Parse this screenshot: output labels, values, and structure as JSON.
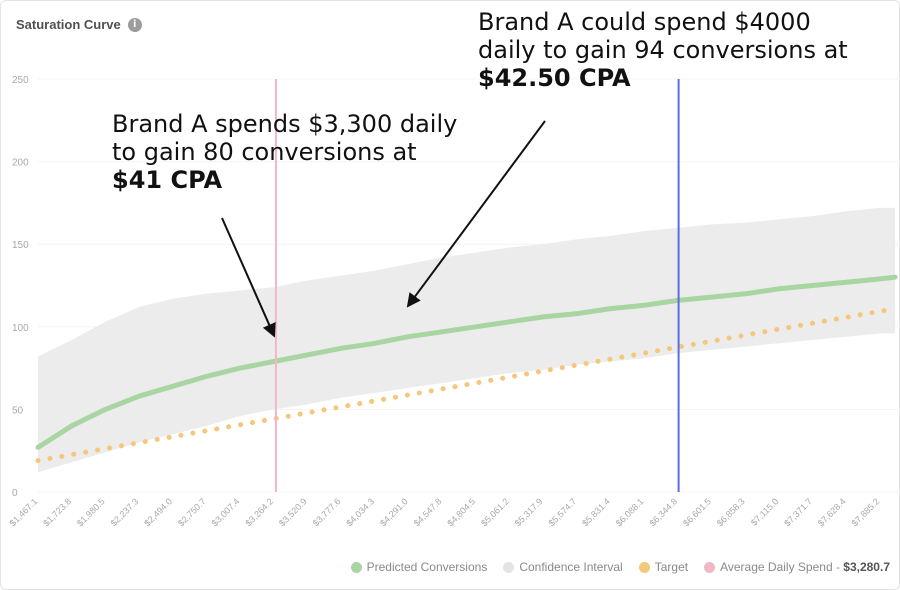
{
  "chart_data": {
    "type": "line",
    "title": "Saturation Curve",
    "info_icon": "info-icon",
    "yticks": [
      0,
      50,
      100,
      150,
      200,
      250
    ],
    "ylim": [
      0,
      250
    ],
    "xlim": [
      1467.1,
      7885.2
    ],
    "x_tick_values": [
      1467.1,
      1723.8,
      1980.5,
      2237.3,
      2494.0,
      2750.7,
      3007.4,
      3264.2,
      3520.9,
      3777.6,
      4034.3,
      4291.0,
      4547.8,
      4804.5,
      5061.2,
      5317.9,
      5574.7,
      5831.4,
      6088.1,
      6344.8,
      6601.5,
      6858.3,
      7115.0,
      7371.7,
      7628.4,
      7885.2
    ],
    "x_tick_labels": [
      "$1,467.1",
      "$1,723.8",
      "$1,980.5",
      "$2,237.3",
      "$2,494.0",
      "$2,750.7",
      "$3,007.4",
      "$3,264.2",
      "$3,520.9",
      "$3,777.6",
      "$4,034.3",
      "$4,291.0",
      "$4,547.8",
      "$4,804.5",
      "$5,061.2",
      "$5,317.9",
      "$5,574.7",
      "$5,831.4",
      "$6,088.1",
      "$6,344.8",
      "$6,601.5",
      "$6,858.3",
      "$7,115.0",
      "$7,371.7",
      "$7,628.4",
      "$7,885.2"
    ],
    "series": [
      {
        "name": "Predicted Conversions",
        "color": "#a8d5a2",
        "style": "solid",
        "x": [
          1467.1,
          1723.8,
          1980.5,
          2237.3,
          2494.0,
          2750.7,
          3007.4,
          3264.2,
          3520.9,
          3777.6,
          4034.3,
          4291.0,
          4547.8,
          4804.5,
          5061.2,
          5317.9,
          5574.7,
          5831.4,
          6088.1,
          6344.8,
          6601.5,
          6858.3,
          7115.0,
          7371.7,
          7628.4,
          7885.2,
          8000
        ],
        "y": [
          27,
          40,
          50,
          58,
          64,
          70,
          75,
          79,
          83,
          87,
          90,
          94,
          97,
          100,
          103,
          106,
          108,
          111,
          113,
          116,
          118,
          120,
          123,
          125,
          127,
          129,
          130
        ]
      },
      {
        "name": "Target",
        "color": "#f5c77a",
        "style": "dotted",
        "x": [
          1467.1,
          8000
        ],
        "y": [
          19,
          111
        ]
      }
    ],
    "confidence_interval": {
      "name": "Confidence Interval",
      "color": "#ececec",
      "x": [
        1467.1,
        1723.8,
        1980.5,
        2237.3,
        2494.0,
        2750.7,
        3007.4,
        3264.2,
        3520.9,
        3777.6,
        4034.3,
        4291.0,
        4547.8,
        4804.5,
        5061.2,
        5317.9,
        5574.7,
        5831.4,
        6088.1,
        6344.8,
        6601.5,
        6858.3,
        7115.0,
        7371.7,
        7628.4,
        7885.2,
        8000
      ],
      "upper": [
        82,
        92,
        103,
        112,
        117,
        120,
        122,
        124,
        128,
        131,
        134,
        138,
        142,
        145,
        148,
        150,
        153,
        155,
        158,
        160,
        162,
        163,
        165,
        167,
        170,
        172,
        172
      ],
      "lower": [
        12,
        18,
        24,
        30,
        35,
        40,
        46,
        50,
        53,
        57,
        60,
        63,
        66,
        69,
        72,
        74,
        77,
        79,
        81,
        84,
        86,
        88,
        90,
        92,
        94,
        96,
        96
      ]
    },
    "reference_lines": [
      {
        "name": "Average Daily Spend",
        "x": 3280.7,
        "color": "#f0b8c6"
      },
      {
        "x": 6350.0,
        "color": "#5b6ee0"
      }
    ],
    "annotations": [
      {
        "lines": [
          "Brand A spends $3,300 daily",
          "to gain 80 conversions at"
        ],
        "bold": "$41 CPA",
        "arrow_to": {
          "x": 3264.2,
          "y": 95
        }
      },
      {
        "lines": [
          "Brand A could spend $4000",
          "daily to gain 94 conversions at"
        ],
        "bold": "$42.50 CPA",
        "arrow_to": {
          "x": 4291.0,
          "y": 113
        }
      }
    ],
    "legend": [
      {
        "label": "Predicted Conversions",
        "color": "#a8d5a2"
      },
      {
        "label": "Confidence Interval",
        "color": "#ececec"
      },
      {
        "label": "Target",
        "color": "#f5c77a"
      },
      {
        "label": "Average Daily Spend - ",
        "value": "$3,280.7",
        "color": "#f0b8c6"
      }
    ]
  }
}
